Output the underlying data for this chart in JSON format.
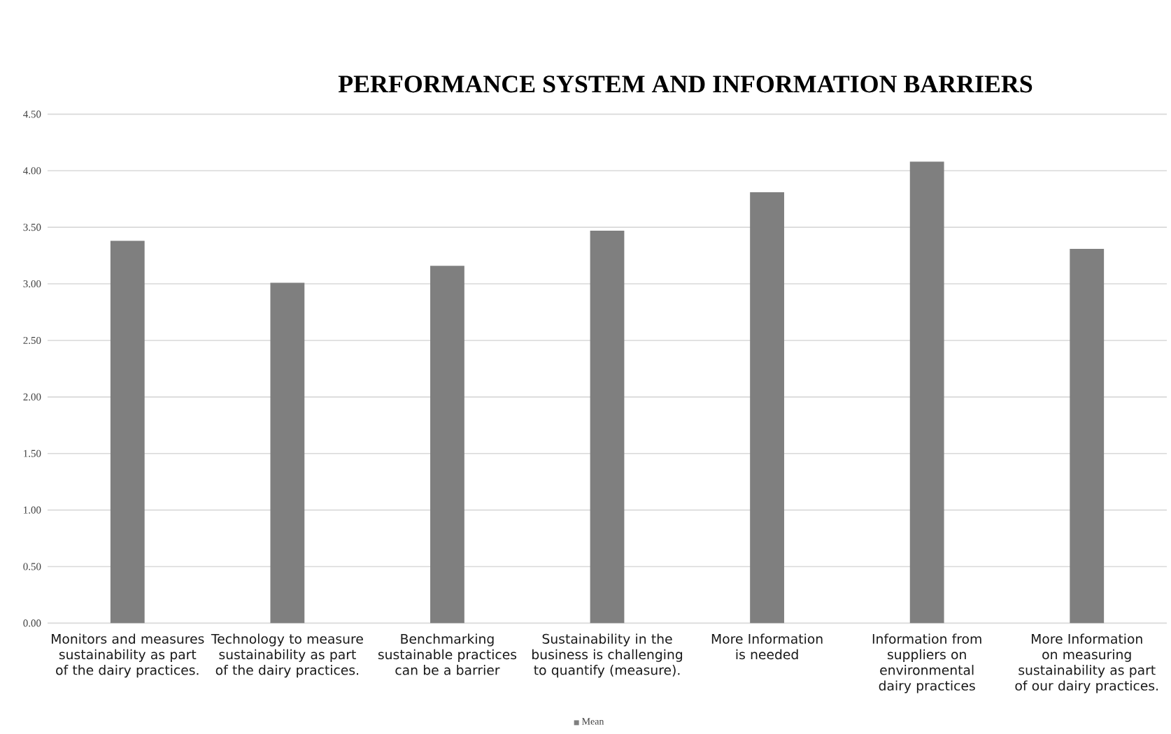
{
  "chart_data": {
    "type": "bar",
    "title": "PERFORMANCE SYSTEM AND INFORMATION BARRIERS",
    "categories": [
      "Monitors and measures sustainability as part of the dairy practices.",
      "Technology to measure sustainability as part of the dairy practices.",
      "Benchmarking sustainable practices can be a barrier",
      "Sustainability in the business is challenging to quantify (measure).",
      "More Information is needed",
      "Information from suppliers on environmental dairy practices",
      "More Information on measuring sustainability as part of our dairy practices."
    ],
    "series": [
      {
        "name": "Mean",
        "color": "#7f7f7f",
        "values": [
          3.38,
          3.01,
          3.16,
          3.47,
          3.81,
          4.08,
          3.31
        ]
      }
    ],
    "ylim": [
      0,
      4.5
    ],
    "yticks": [
      {
        "value": 0,
        "label": "0.00"
      },
      {
        "value": 0.5,
        "label": "0.50"
      },
      {
        "value": 1,
        "label": "1.00"
      },
      {
        "value": 1.5,
        "label": "1.50"
      },
      {
        "value": 2,
        "label": "2.00"
      },
      {
        "value": 2.5,
        "label": "2.50"
      },
      {
        "value": 3,
        "label": "3.00"
      },
      {
        "value": 3.5,
        "label": "3.50"
      },
      {
        "value": 4,
        "label": "4.00"
      },
      {
        "value": 4.5,
        "label": "4.50"
      }
    ],
    "grid": "y",
    "legend": "bottom"
  }
}
